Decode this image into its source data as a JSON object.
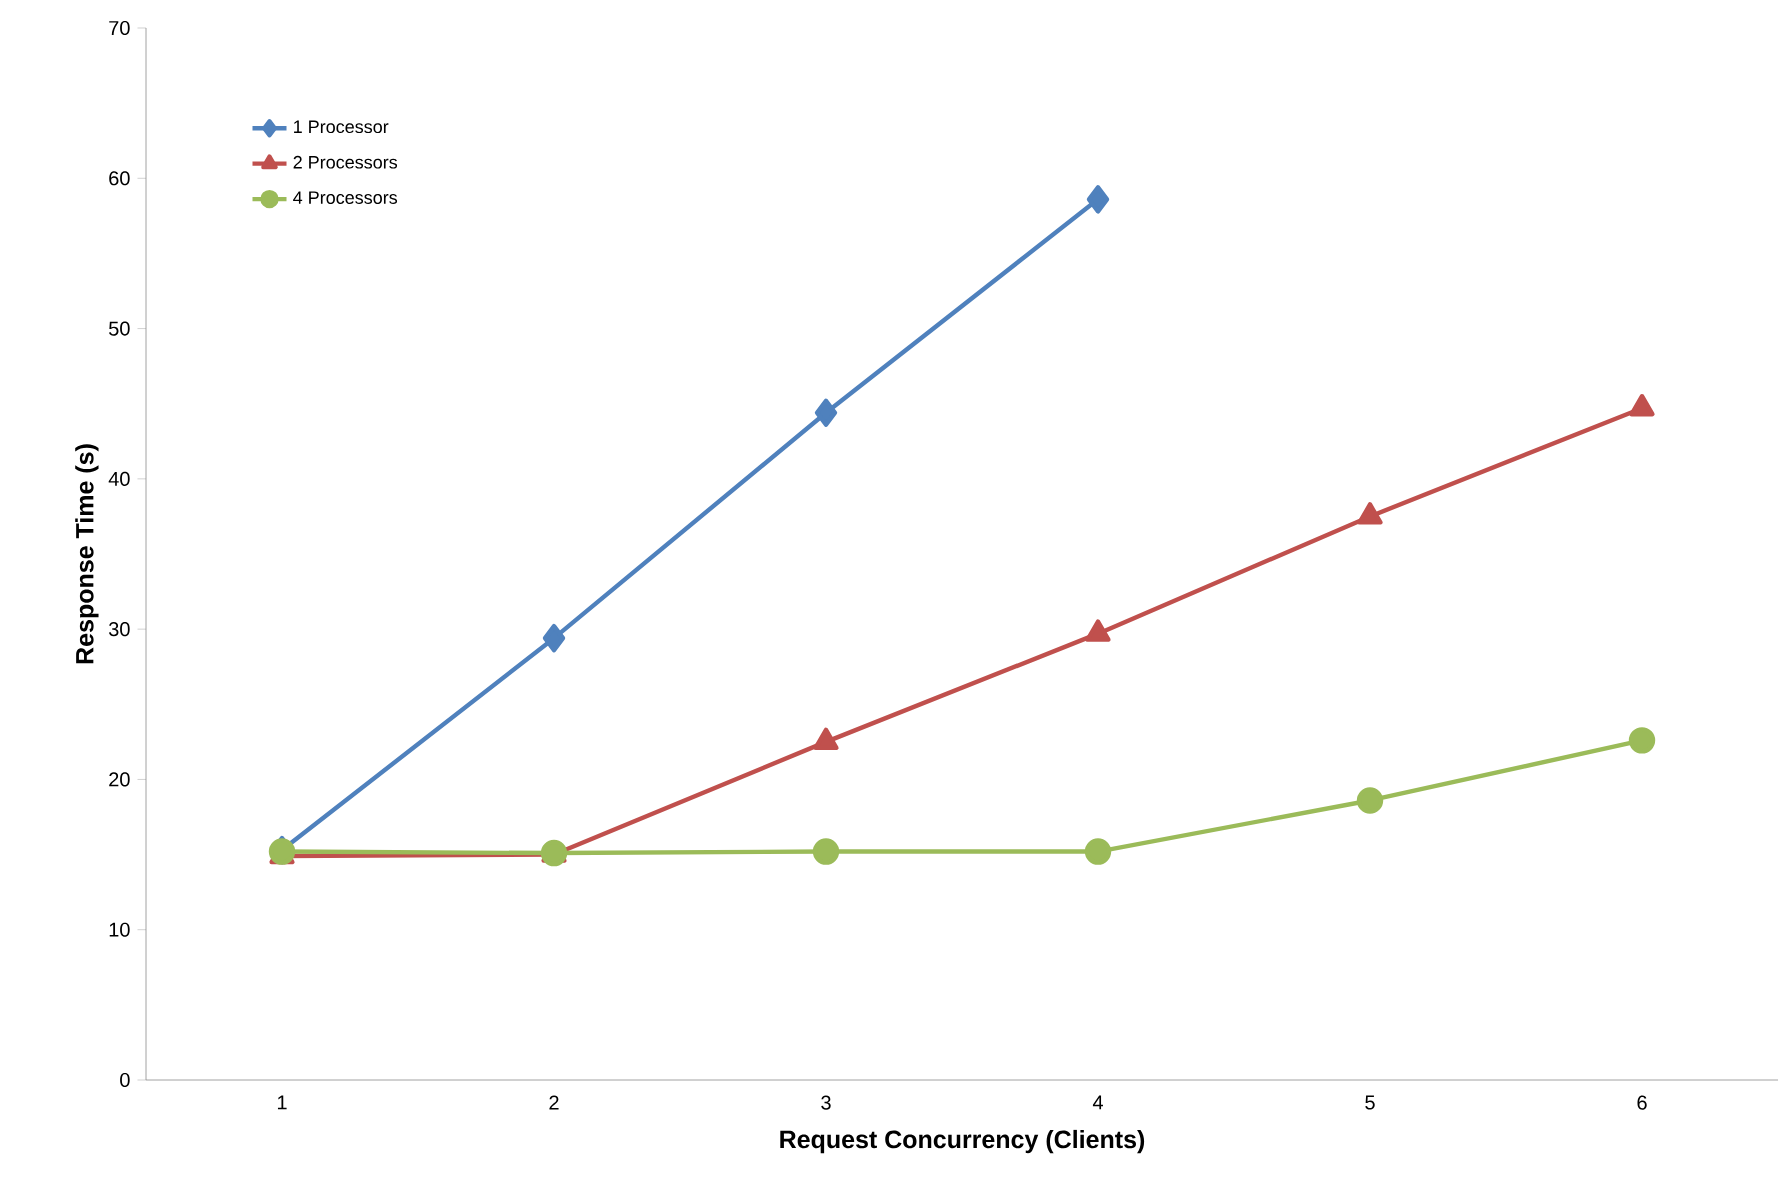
{
  "chart_data": {
    "type": "line",
    "xlabel": "Request Concurrency (Clients)",
    "ylabel": "Response Time (s)",
    "categories": [
      "1",
      "2",
      "3",
      "4",
      "5",
      "6"
    ],
    "series": [
      {
        "name": "1 Processor",
        "color": "#4f81bd",
        "marker": "diamond",
        "values": [
          15.3,
          29.4,
          44.4,
          58.6,
          null,
          null
        ]
      },
      {
        "name": "2 Processors",
        "color": "#c0504d",
        "marker": "triangle",
        "values": [
          14.9,
          15.0,
          22.5,
          29.7,
          37.5,
          44.7
        ]
      },
      {
        "name": "4 Processors",
        "color": "#9bbb59",
        "marker": "circle",
        "values": [
          15.2,
          15.1,
          15.2,
          15.2,
          18.6,
          22.6
        ]
      }
    ],
    "ylim": [
      0,
      70
    ],
    "yticks": [
      0,
      10,
      20,
      30,
      40,
      50,
      60,
      70
    ],
    "grid": false,
    "legend": "top left",
    "line_style": "solid"
  }
}
